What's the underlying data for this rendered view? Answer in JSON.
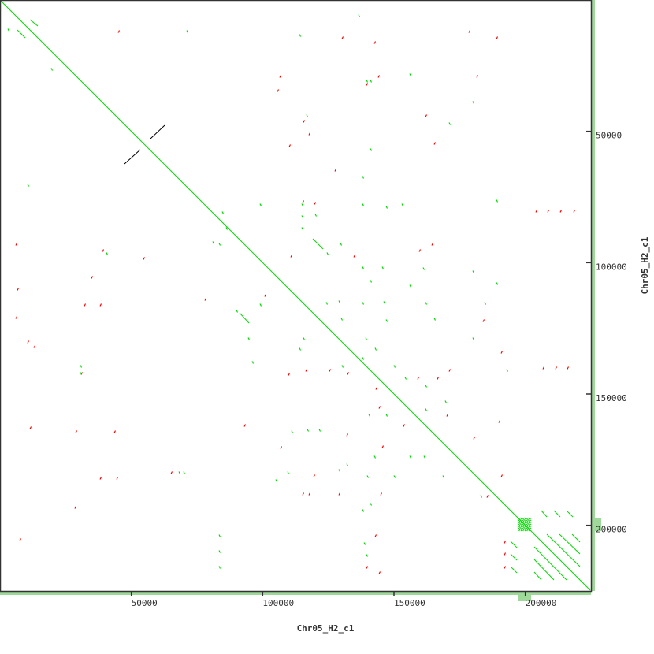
{
  "chart_data": {
    "type": "dotplot",
    "xlabel": "Chr05_H2_c1",
    "ylabel": "Chr05_H2_c1",
    "xlim": [
      0,
      225000
    ],
    "ylim": [
      0,
      225000
    ],
    "y_inverted": true,
    "xticks": [
      50000,
      100000,
      150000,
      200000
    ],
    "yticks": [
      50000,
      100000,
      150000,
      200000
    ],
    "xtick_labels": [
      "50000",
      "100000",
      "150000",
      "200000"
    ],
    "ytick_labels": [
      "50000",
      "100000",
      "150000",
      "200000"
    ],
    "colors": {
      "forward": "#00dd00",
      "reverse": "#ff0000",
      "other": "#000000",
      "margin": "#9fd99a",
      "margin_red": "#f07070",
      "axis": "#333333"
    },
    "segments": [
      {
        "kind": "forward",
        "from": [
          0,
          0
        ],
        "to": [
          224700,
          224700
        ]
      },
      {
        "kind": "other",
        "from": [
          47400,
          62400
        ],
        "to": [
          53400,
          57000
        ]
      },
      {
        "kind": "other",
        "from": [
          57300,
          52800
        ],
        "to": [
          62700,
          47700
        ]
      },
      {
        "kind": "forward",
        "from": [
          119100,
          90900
        ],
        "to": [
          123000,
          94800
        ]
      },
      {
        "kind": "forward",
        "from": [
          91200,
          119100
        ],
        "to": [
          94800,
          123000
        ]
      },
      {
        "kind": "forward",
        "from": [
          203400,
          208200
        ],
        "to": [
          215700,
          220800
        ]
      },
      {
        "kind": "forward",
        "from": [
          203400,
          213000
        ],
        "to": [
          210900,
          220800
        ]
      },
      {
        "kind": "forward",
        "from": [
          203400,
          217800
        ],
        "to": [
          206100,
          220800
        ]
      },
      {
        "kind": "forward",
        "from": [
          208200,
          203400
        ],
        "to": [
          220800,
          215700
        ]
      },
      {
        "kind": "forward",
        "from": [
          213000,
          203400
        ],
        "to": [
          220800,
          210900
        ]
      },
      {
        "kind": "forward",
        "from": [
          217800,
          203400
        ],
        "to": [
          220800,
          206400
        ]
      },
      {
        "kind": "forward",
        "from": [
          206100,
          194400
        ],
        "to": [
          208200,
          196800
        ]
      },
      {
        "kind": "forward",
        "from": [
          210900,
          194400
        ],
        "to": [
          213300,
          196800
        ]
      },
      {
        "kind": "forward",
        "from": [
          215700,
          194400
        ],
        "to": [
          218100,
          196800
        ]
      },
      {
        "kind": "forward",
        "from": [
          194400,
          206100
        ],
        "to": [
          196800,
          208500
        ]
      },
      {
        "kind": "forward",
        "from": [
          194400,
          210900
        ],
        "to": [
          196800,
          213300
        ]
      },
      {
        "kind": "forward",
        "from": [
          194400,
          215700
        ],
        "to": [
          196800,
          218100
        ]
      },
      {
        "kind": "forward",
        "from": [
          6600,
          11400
        ],
        "to": [
          9600,
          14400
        ]
      },
      {
        "kind": "forward",
        "from": [
          11400,
          7500
        ],
        "to": [
          14400,
          9900
        ]
      }
    ],
    "repeat_blocks": [
      {
        "kind": "forward",
        "x": [
          197100,
          202200
        ],
        "y": [
          197100,
          202200
        ]
      }
    ],
    "reverse_points": [
      [
        106500,
        29100
      ],
      [
        105600,
        34500
      ],
      [
        144000,
        29100
      ],
      [
        139500,
        32100
      ],
      [
        181500,
        29100
      ],
      [
        165300,
        54600
      ],
      [
        110100,
        55500
      ],
      [
        117600,
        51000
      ],
      [
        115200,
        76800
      ],
      [
        119700,
        77400
      ],
      [
        6000,
        93000
      ],
      [
        39000,
        95400
      ],
      [
        54600,
        98400
      ],
      [
        34800,
        105600
      ],
      [
        6600,
        110100
      ],
      [
        32100,
        116100
      ],
      [
        38100,
        116100
      ],
      [
        6000,
        120900
      ],
      [
        10500,
        130200
      ],
      [
        12900,
        132000
      ],
      [
        30900,
        142200
      ],
      [
        28800,
        164400
      ],
      [
        11400,
        162900
      ],
      [
        43500,
        164400
      ],
      [
        38100,
        182100
      ],
      [
        44400,
        182100
      ],
      [
        28500,
        193200
      ],
      [
        65100,
        180000
      ],
      [
        119400,
        181200
      ],
      [
        115200,
        188100
      ],
      [
        117600,
        188100
      ],
      [
        129000,
        188100
      ],
      [
        144900,
        188100
      ],
      [
        109800,
        142500
      ],
      [
        116400,
        141000
      ],
      [
        125400,
        141000
      ],
      [
        132300,
        142200
      ],
      [
        144300,
        155100
      ],
      [
        143100,
        147900
      ],
      [
        159000,
        144000
      ],
      [
        166500,
        144000
      ],
      [
        171000,
        141000
      ],
      [
        183900,
        122100
      ],
      [
        190800,
        134100
      ],
      [
        190800,
        181200
      ],
      [
        204000,
        80400
      ],
      [
        208500,
        80400
      ],
      [
        213300,
        80400
      ],
      [
        218400,
        80400
      ],
      [
        206700,
        140100
      ],
      [
        211500,
        140100
      ],
      [
        216000,
        140100
      ],
      [
        159600,
        95400
      ],
      [
        164400,
        93000
      ],
      [
        134700,
        97500
      ],
      [
        110700,
        97500
      ],
      [
        170100,
        158100
      ],
      [
        189900,
        160500
      ],
      [
        106800,
        170400
      ],
      [
        93000,
        162000
      ],
      [
        132000,
        165600
      ],
      [
        145500,
        170100
      ],
      [
        153600,
        162000
      ],
      [
        180300,
        166800
      ],
      [
        185400,
        189000
      ],
      [
        142800,
        204000
      ],
      [
        139500,
        216000
      ],
      [
        144300,
        218100
      ],
      [
        7500,
        205500
      ],
      [
        192000,
        206400
      ],
      [
        192000,
        210900
      ],
      [
        192000,
        216000
      ],
      [
        45000,
        12000
      ],
      [
        115500,
        46200
      ],
      [
        127500,
        64800
      ],
      [
        162000,
        44100
      ],
      [
        130200,
        14400
      ],
      [
        142500,
        16200
      ],
      [
        178500,
        12000
      ],
      [
        189000,
        14400
      ],
      [
        78000,
        114000
      ],
      [
        100800,
        112500
      ]
    ],
    "forward_points": [
      [
        139500,
        30900
      ],
      [
        141000,
        30900
      ],
      [
        156000,
        28500
      ],
      [
        180000,
        39000
      ],
      [
        116700,
        44100
      ],
      [
        141000,
        57000
      ],
      [
        138000,
        67500
      ],
      [
        114900,
        78000
      ],
      [
        138000,
        78000
      ],
      [
        147000,
        78900
      ],
      [
        153000,
        78000
      ],
      [
        189000,
        76500
      ],
      [
        84600,
        81000
      ],
      [
        99000,
        78000
      ],
      [
        86100,
        87000
      ],
      [
        83400,
        93000
      ],
      [
        114900,
        82500
      ],
      [
        114900,
        87000
      ],
      [
        120000,
        81900
      ],
      [
        81000,
        92400
      ],
      [
        129600,
        93000
      ],
      [
        124500,
        96600
      ],
      [
        138000,
        102000
      ],
      [
        145500,
        102000
      ],
      [
        161100,
        102300
      ],
      [
        180000,
        103500
      ],
      [
        156000,
        108900
      ],
      [
        146100,
        115200
      ],
      [
        141000,
        107100
      ],
      [
        129000,
        114900
      ],
      [
        124200,
        115500
      ],
      [
        129900,
        121500
      ],
      [
        138000,
        115500
      ],
      [
        147000,
        122100
      ],
      [
        162000,
        115500
      ],
      [
        165300,
        121500
      ],
      [
        184500,
        115500
      ],
      [
        189000,
        108000
      ],
      [
        90000,
        118500
      ],
      [
        99000,
        116100
      ],
      [
        94500,
        129000
      ],
      [
        96000,
        138000
      ],
      [
        115500,
        129000
      ],
      [
        114000,
        132900
      ],
      [
        139200,
        129000
      ],
      [
        142800,
        132900
      ],
      [
        180000,
        129000
      ],
      [
        192900,
        141000
      ],
      [
        154200,
        144000
      ],
      [
        138000,
        136500
      ],
      [
        130200,
        139500
      ],
      [
        150000,
        139500
      ],
      [
        162000,
        147000
      ],
      [
        169500,
        153000
      ],
      [
        140400,
        158100
      ],
      [
        147000,
        158100
      ],
      [
        162000,
        156000
      ],
      [
        111000,
        164400
      ],
      [
        117000,
        163800
      ],
      [
        121500,
        163800
      ],
      [
        132000,
        177000
      ],
      [
        142500,
        174000
      ],
      [
        156000,
        174000
      ],
      [
        161400,
        174000
      ],
      [
        109500,
        180000
      ],
      [
        105000,
        183000
      ],
      [
        129000,
        179100
      ],
      [
        139800,
        181500
      ],
      [
        150000,
        181500
      ],
      [
        168600,
        181500
      ],
      [
        183000,
        189000
      ],
      [
        68100,
        180000
      ],
      [
        69900,
        180000
      ],
      [
        30600,
        139500
      ],
      [
        30600,
        142200
      ],
      [
        83400,
        204000
      ],
      [
        83400,
        210000
      ],
      [
        83400,
        216000
      ],
      [
        138600,
        207000
      ],
      [
        139500,
        211500
      ],
      [
        3000,
        11400
      ],
      [
        19500,
        26400
      ],
      [
        10500,
        70500
      ],
      [
        141000,
        192000
      ],
      [
        138000,
        194400
      ],
      [
        40500,
        96600
      ],
      [
        71100,
        12000
      ],
      [
        136500,
        6000
      ],
      [
        114000,
        13500
      ],
      [
        171000,
        47100
      ]
    ]
  }
}
